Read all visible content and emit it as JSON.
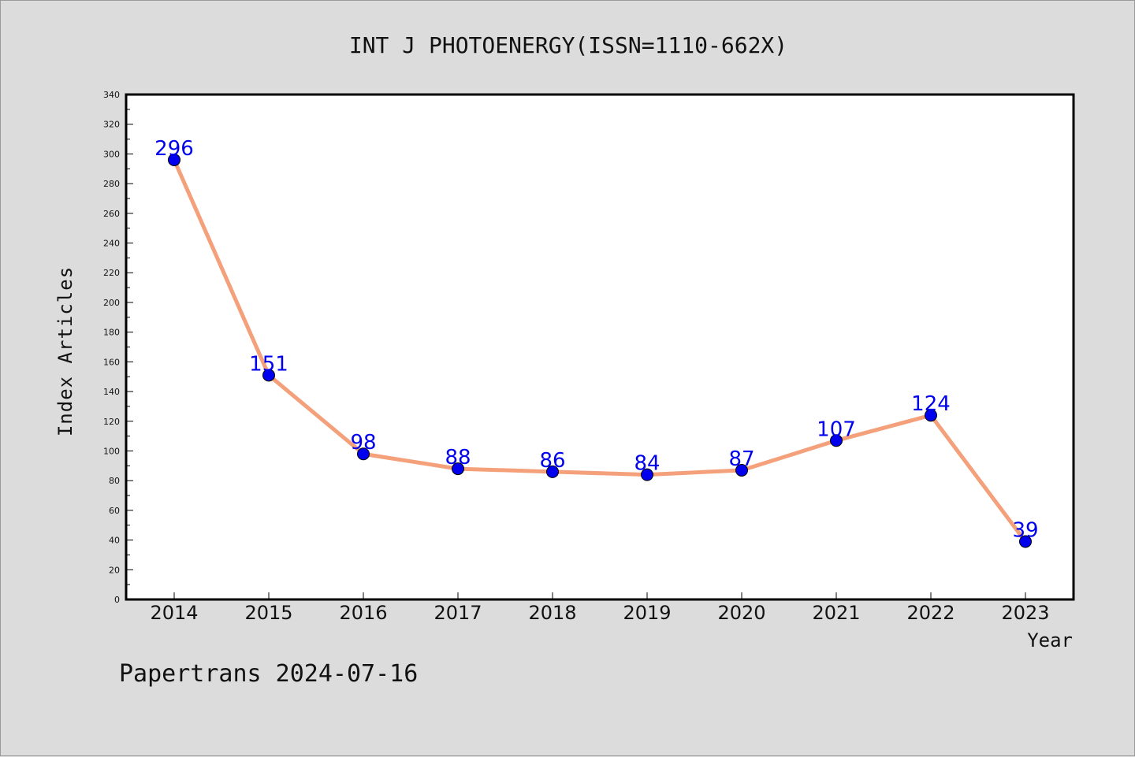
{
  "footer_text": "Papertrans 2024-07-16",
  "colors": {
    "background": "#dcdcdc",
    "plot_background": "#ffffff",
    "line": "#f4a07a",
    "marker": "#0000ee",
    "data_label": "#0000ee",
    "axis": "#000000"
  },
  "chart_data": {
    "type": "line",
    "title": "INT J PHOTOENERGY(ISSN=1110-662X)",
    "xlabel": "Year",
    "ylabel": "Index Articles",
    "categories": [
      "2014",
      "2015",
      "2016",
      "2017",
      "2018",
      "2019",
      "2020",
      "2021",
      "2022",
      "2023"
    ],
    "series": [
      {
        "values": [
          296,
          151,
          98,
          88,
          86,
          84,
          87,
          107,
          124,
          39
        ]
      }
    ],
    "ylim": [
      0,
      340
    ],
    "yticks": [
      0,
      20,
      40,
      60,
      80,
      100,
      120,
      140,
      160,
      180,
      200,
      220,
      240,
      260,
      280,
      300,
      320,
      340
    ],
    "grid": false,
    "legend": "none",
    "data_labels": true
  }
}
